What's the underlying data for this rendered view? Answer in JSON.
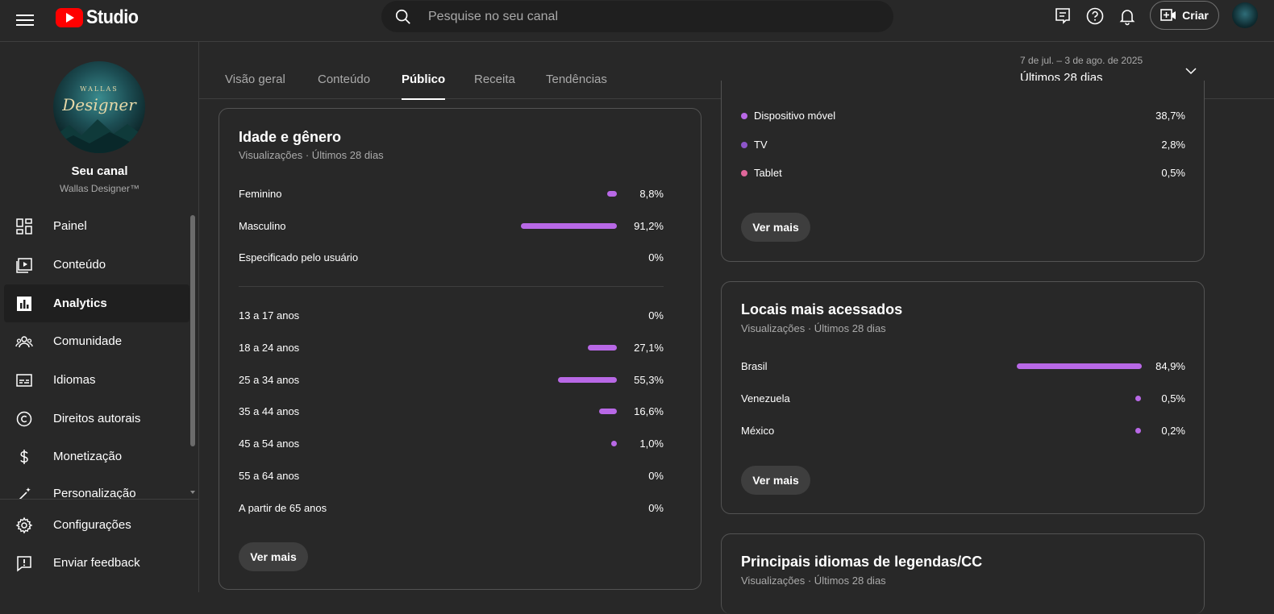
{
  "header": {
    "logo_text": "Studio",
    "search_placeholder": "Pesquise no seu canal",
    "create_label": "Criar"
  },
  "sidebar": {
    "avatar_text_top": "WALLAS",
    "avatar_text_main": "Designer",
    "channel_title": "Seu canal",
    "channel_name": "Wallas Designer™",
    "items": [
      {
        "label": "Painel",
        "icon": "dashboard-icon"
      },
      {
        "label": "Conteúdo",
        "icon": "content-icon"
      },
      {
        "label": "Analytics",
        "icon": "analytics-icon",
        "active": true
      },
      {
        "label": "Comunidade",
        "icon": "community-icon"
      },
      {
        "label": "Idiomas",
        "icon": "subtitles-icon"
      },
      {
        "label": "Direitos autorais",
        "icon": "copyright-icon"
      },
      {
        "label": "Monetização",
        "icon": "dollar-icon"
      },
      {
        "label": "Personalização",
        "icon": "magic-wand-icon"
      }
    ],
    "bottom_items": [
      {
        "label": "Configurações",
        "icon": "gear-icon"
      },
      {
        "label": "Enviar feedback",
        "icon": "feedback-icon"
      }
    ]
  },
  "tabs": [
    "Visão geral",
    "Conteúdo",
    "Público",
    "Receita",
    "Tendências"
  ],
  "active_tab": "Público",
  "date_range": {
    "dates": "7 de jul. – 3 de ago. de 2025",
    "label": "Últimos 28 dias"
  },
  "age_gender": {
    "title": "Idade e gênero",
    "subtitle": "Visualizações · Últimos 28 dias",
    "gender": [
      {
        "label": "Feminino",
        "value": "8,8%",
        "pct": 8.8
      },
      {
        "label": "Masculino",
        "value": "91,2%",
        "pct": 91.2
      },
      {
        "label": "Especificado pelo usuário",
        "value": "0%",
        "pct": 0
      }
    ],
    "ages": [
      {
        "label": "13 a 17 anos",
        "value": "0%",
        "pct": 0
      },
      {
        "label": "18 a 24 anos",
        "value": "27,1%",
        "pct": 27.1
      },
      {
        "label": "25 a 34 anos",
        "value": "55,3%",
        "pct": 55.3
      },
      {
        "label": "35 a 44 anos",
        "value": "16,6%",
        "pct": 16.6
      },
      {
        "label": "45 a 54 anos",
        "value": "1,0%",
        "pct": 1.0
      },
      {
        "label": "55 a 64 anos",
        "value": "0%",
        "pct": 0
      },
      {
        "label": "A partir de 65 anos",
        "value": "0%",
        "pct": 0
      }
    ],
    "more_label": "Ver mais"
  },
  "devices": {
    "items": [
      {
        "label": "Dispositivo móvel",
        "value": "38,7%",
        "color": "#b868e6"
      },
      {
        "label": "TV",
        "value": "2,8%",
        "color": "#8d55c9"
      },
      {
        "label": "Tablet",
        "value": "0,5%",
        "color": "#e0679b"
      }
    ],
    "more_label": "Ver mais"
  },
  "locations": {
    "title": "Locais mais acessados",
    "subtitle": "Visualizações · Últimos 28 dias",
    "items": [
      {
        "label": "Brasil",
        "value": "84,9%",
        "pct": 84.9
      },
      {
        "label": "Venezuela",
        "value": "0,5%",
        "pct": 0.5
      },
      {
        "label": "México",
        "value": "0,2%",
        "pct": 0.2
      }
    ],
    "more_label": "Ver mais"
  },
  "languages": {
    "title": "Principais idiomas de legendas/CC",
    "subtitle": "Visualizações · Últimos 28 dias"
  },
  "colors": {
    "bar": "#b868e6",
    "background": "#282828",
    "card_border": "#535353"
  }
}
